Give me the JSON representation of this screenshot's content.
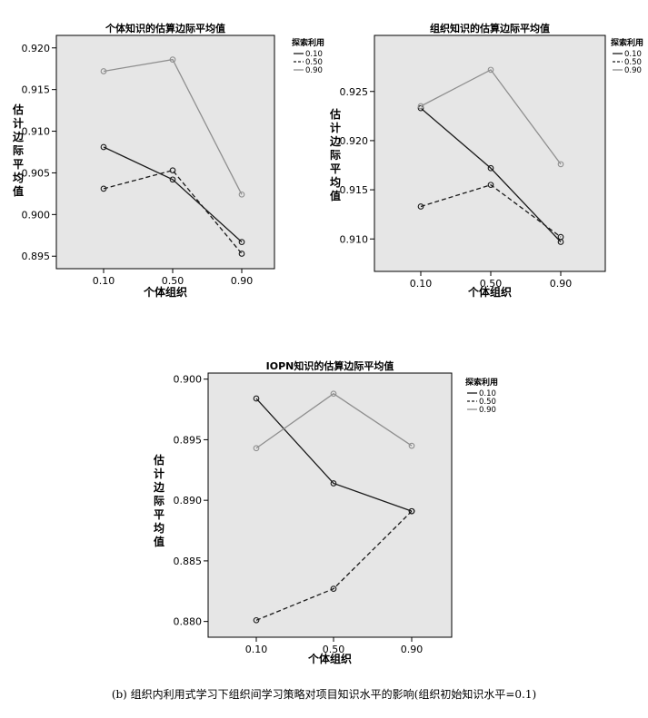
{
  "caption": "(b) 组织内利用式学习下组织间学习策略对项目知识水平的影响(组织初始知识水平=0.1)",
  "chart_data": [
    {
      "type": "line",
      "title": "个体知识的估算边际平均值",
      "xlabel": "个体组织",
      "ylabel": "估计边际平均值",
      "categories": [
        "0.10",
        "0.50",
        "0.90"
      ],
      "yticks": [
        "0.920",
        "0.915",
        "0.910",
        "0.905",
        "0.900",
        "0.895"
      ],
      "ylim": [
        0.8935,
        0.9215
      ],
      "legend_title": "探索利用",
      "legend_position": "right",
      "grid": false,
      "series": [
        {
          "name": "0.10",
          "values": [
            0.9081,
            0.9042,
            0.8967
          ],
          "color": "#1a1a1a",
          "dash": "solid"
        },
        {
          "name": "0.50",
          "values": [
            0.9031,
            0.9053,
            0.8953
          ],
          "color": "#1a1a1a",
          "dash": "dashed"
        },
        {
          "name": "0.90",
          "values": [
            0.9172,
            0.9186,
            0.9024
          ],
          "color": "#8f8f8f",
          "dash": "solid"
        }
      ]
    },
    {
      "type": "line",
      "title": "组织知识的估算边际平均值",
      "xlabel": "个体组织",
      "ylabel": "估计边际平均值",
      "categories": [
        "0.10",
        "0.50",
        "0.90"
      ],
      "yticks": [
        "0.925",
        "0.920",
        "0.915",
        "0.910"
      ],
      "ylim": [
        0.9067,
        0.9307
      ],
      "legend_title": "探索利用",
      "legend_position": "right",
      "grid": false,
      "series": [
        {
          "name": "0.10",
          "values": [
            0.9233,
            0.9172,
            0.9097
          ],
          "color": "#1a1a1a",
          "dash": "solid"
        },
        {
          "name": "0.50",
          "values": [
            0.9133,
            0.9155,
            0.9102
          ],
          "color": "#1a1a1a",
          "dash": "dashed"
        },
        {
          "name": "0.90",
          "values": [
            0.9235,
            0.9272,
            0.9176
          ],
          "color": "#8f8f8f",
          "dash": "solid"
        }
      ]
    },
    {
      "type": "line",
      "title": "IOPN知识的估算边际平均值",
      "xlabel": "个体组织",
      "ylabel": "估计边际平均值",
      "categories": [
        "0.10",
        "0.50",
        "0.90"
      ],
      "yticks": [
        "0.900",
        "0.895",
        "0.890",
        "0.885",
        "0.880"
      ],
      "ylim": [
        0.8787,
        0.9005
      ],
      "legend_title": "探索利用",
      "legend_position": "right",
      "grid": false,
      "series": [
        {
          "name": "0.10",
          "values": [
            0.8984,
            0.8914,
            0.8891
          ],
          "color": "#1a1a1a",
          "dash": "solid"
        },
        {
          "name": "0.50",
          "values": [
            0.8801,
            0.8827,
            0.8891
          ],
          "color": "#1a1a1a",
          "dash": "dashed"
        },
        {
          "name": "0.90",
          "values": [
            0.8943,
            0.8988,
            0.8945
          ],
          "color": "#8f8f8f",
          "dash": "solid"
        }
      ]
    }
  ]
}
